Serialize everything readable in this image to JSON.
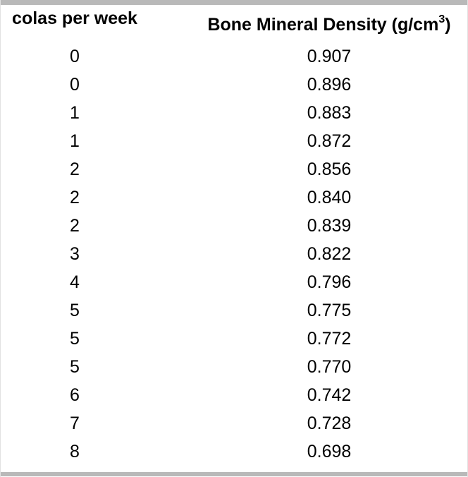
{
  "table": {
    "columns": [
      {
        "label": "colas per week"
      },
      {
        "label_prefix": "Bone Mineral Density (g/cm",
        "label_sup": "3",
        "label_suffix": ")"
      }
    ],
    "rows": [
      [
        "0",
        "0.907"
      ],
      [
        "0",
        "0.896"
      ],
      [
        "1",
        "0.883"
      ],
      [
        "1",
        "0.872"
      ],
      [
        "2",
        "0.856"
      ],
      [
        "2",
        "0.840"
      ],
      [
        "2",
        "0.839"
      ],
      [
        "3",
        "0.822"
      ],
      [
        "4",
        "0.796"
      ],
      [
        "5",
        "0.775"
      ],
      [
        "5",
        "0.772"
      ],
      [
        "5",
        "0.770"
      ],
      [
        "6",
        "0.742"
      ],
      [
        "7",
        "0.728"
      ],
      [
        "8",
        "0.698"
      ]
    ]
  },
  "colors": {
    "background": "#ffffff",
    "text": "#000000",
    "border_bar": "#b9b9b9",
    "edge_line": "#e2e2e2"
  },
  "chart_data": {
    "type": "table",
    "title": "",
    "columns": [
      "colas per week",
      "Bone Mineral Density (g/cm^3)"
    ],
    "x_label": "colas per week",
    "y_label": "Bone Mineral Density (g/cm^3)",
    "x": [
      0,
      0,
      1,
      1,
      2,
      2,
      2,
      3,
      4,
      5,
      5,
      5,
      6,
      7,
      8
    ],
    "y": [
      0.907,
      0.896,
      0.883,
      0.872,
      0.856,
      0.84,
      0.839,
      0.822,
      0.796,
      0.775,
      0.772,
      0.77,
      0.742,
      0.728,
      0.698
    ]
  }
}
